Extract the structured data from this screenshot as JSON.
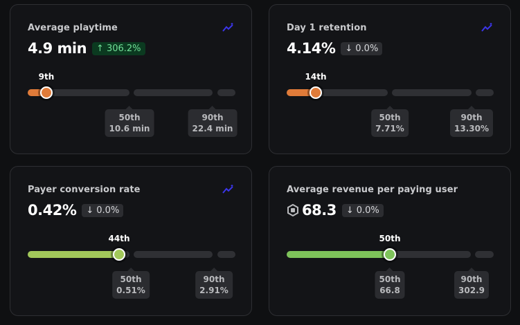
{
  "colors": {
    "orange": "#e07b39",
    "lime": "#a2c85a",
    "green": "#7ec35a",
    "trend_icon": "#3b35e8"
  },
  "cards": [
    {
      "title": "Average playtime",
      "value": "4.9 min",
      "delta": "306.2%",
      "delta_dir": "up",
      "percentile": "9th",
      "percentile_value": 9,
      "p50_label": "50th",
      "p50_value": "10.6 min",
      "p90_label": "90th",
      "p90_value": "22.4 min",
      "icon": "trend-sparkle-icon"
    },
    {
      "title": "Day 1 retention",
      "value": "4.14%",
      "delta": "0.0%",
      "delta_dir": "down",
      "percentile": "14th",
      "percentile_value": 14,
      "p50_label": "50th",
      "p50_value": "7.71%",
      "p90_label": "90th",
      "p90_value": "13.30%",
      "icon": "trend-sparkle-icon"
    },
    {
      "title": "Payer conversion rate",
      "value": "0.42%",
      "delta": "0.0%",
      "delta_dir": "down",
      "percentile": "44th",
      "percentile_value": 44,
      "p50_label": "50th",
      "p50_value": "0.51%",
      "p90_label": "90th",
      "p90_value": "2.91%",
      "icon": "trend-sparkle-icon"
    },
    {
      "title": "Average revenue per paying user",
      "value": "68.3",
      "delta": "0.0%",
      "delta_dir": "down",
      "percentile": "50th",
      "percentile_value": 50,
      "p50_label": "50th",
      "p50_value": "66.8",
      "p90_label": "90th",
      "p90_value": "302.9",
      "icon": "robux-icon"
    }
  ]
}
